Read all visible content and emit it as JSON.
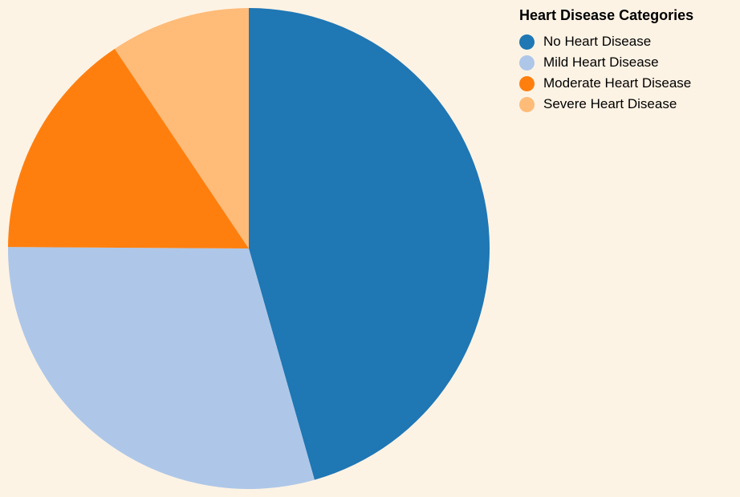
{
  "chart_data": {
    "type": "pie",
    "legend_title": "Heart Disease Categories",
    "legend_position": "top-right",
    "slices": [
      {
        "label": "No Heart Disease",
        "value": 45.6,
        "color": "#1f77b4"
      },
      {
        "label": "Mild Heart Disease",
        "value": 29.5,
        "color": "#aec7e8"
      },
      {
        "label": "Moderate Heart Disease",
        "value": 15.5,
        "color": "#ff7f0e"
      },
      {
        "label": "Severe Heart Disease",
        "value": 9.4,
        "color": "#ffbb78"
      }
    ]
  }
}
